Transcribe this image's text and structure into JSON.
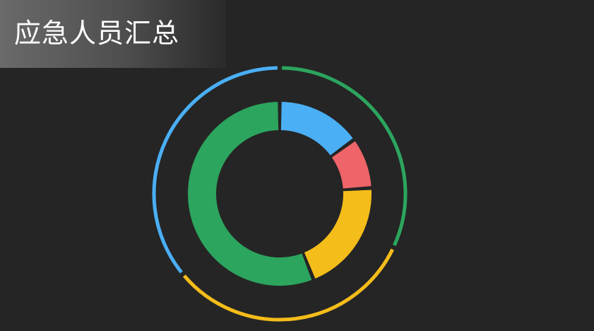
{
  "panel": {
    "title": "应急人员汇总"
  },
  "chart_data": {
    "type": "pie",
    "title": "应急人员汇总",
    "rings": [
      {
        "name": "",
        "ring": "inner",
        "segments": [
          {
            "value": 15,
            "color": "#4aaff5"
          },
          {
            "value": 9,
            "color": "#ee6468"
          },
          {
            "value": 20,
            "color": "#f5bd1a"
          },
          {
            "value": 56,
            "color": "#2ca55e"
          }
        ]
      },
      {
        "name": "",
        "ring": "outer",
        "segments": [
          {
            "value": 32,
            "color": "#2ca55e"
          },
          {
            "value": 32,
            "color": "#f5bd1a"
          },
          {
            "value": 36,
            "color": "#4aaff5"
          }
        ]
      }
    ]
  }
}
